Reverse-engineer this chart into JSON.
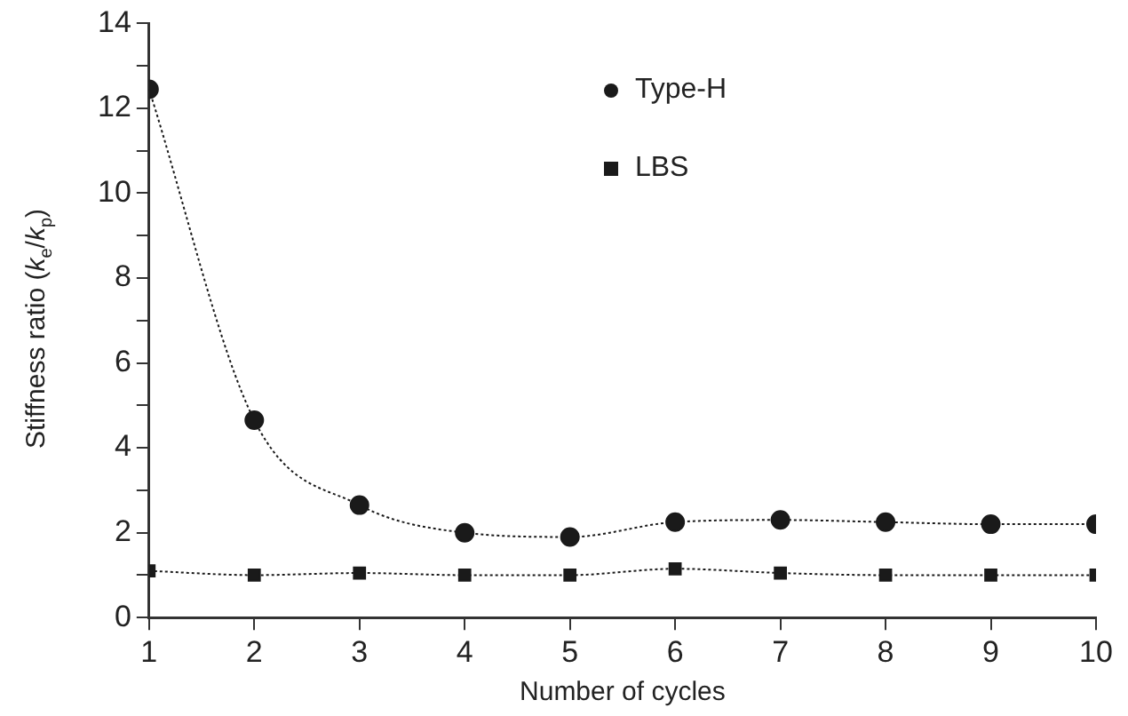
{
  "chart_data": {
    "type": "line",
    "xlabel": "Number of cycles",
    "ylabel": "Stiffness ratio (k$_{e}$/k$_{p}$)",
    "x": [
      1,
      2,
      3,
      4,
      5,
      6,
      7,
      8,
      9,
      10
    ],
    "series": [
      {
        "name": "Type-H",
        "color": "#1a1a1a",
        "marker": "circle",
        "values": [
          12.45,
          4.65,
          2.65,
          2.0,
          1.9,
          2.25,
          2.3,
          2.25,
          2.2,
          2.2
        ]
      },
      {
        "name": "LBS",
        "color": "#1a1a1a",
        "marker": "square",
        "values": [
          1.1,
          1.0,
          1.05,
          1.0,
          1.0,
          1.15,
          1.05,
          1.0,
          1.0,
          1.0
        ]
      }
    ],
    "line_style": "dotted",
    "legend": "top",
    "grid": false,
    "xlim": [
      1,
      10
    ],
    "xticks": [
      1,
      2,
      3,
      4,
      5,
      6,
      7,
      8,
      9,
      10
    ],
    "ylim": [
      0,
      14
    ],
    "yticks": [
      0,
      {
        "value": 1,
        "label": null
      },
      2,
      {
        "value": 3,
        "label": null
      },
      4,
      {
        "value": 5,
        "label": null
      },
      6,
      {
        "value": 7,
        "label": null
      },
      8,
      {
        "value": 9,
        "label": null
      },
      10,
      {
        "value": 11,
        "label": null
      },
      12,
      {
        "value": 13,
        "label": null
      },
      14
    ]
  }
}
